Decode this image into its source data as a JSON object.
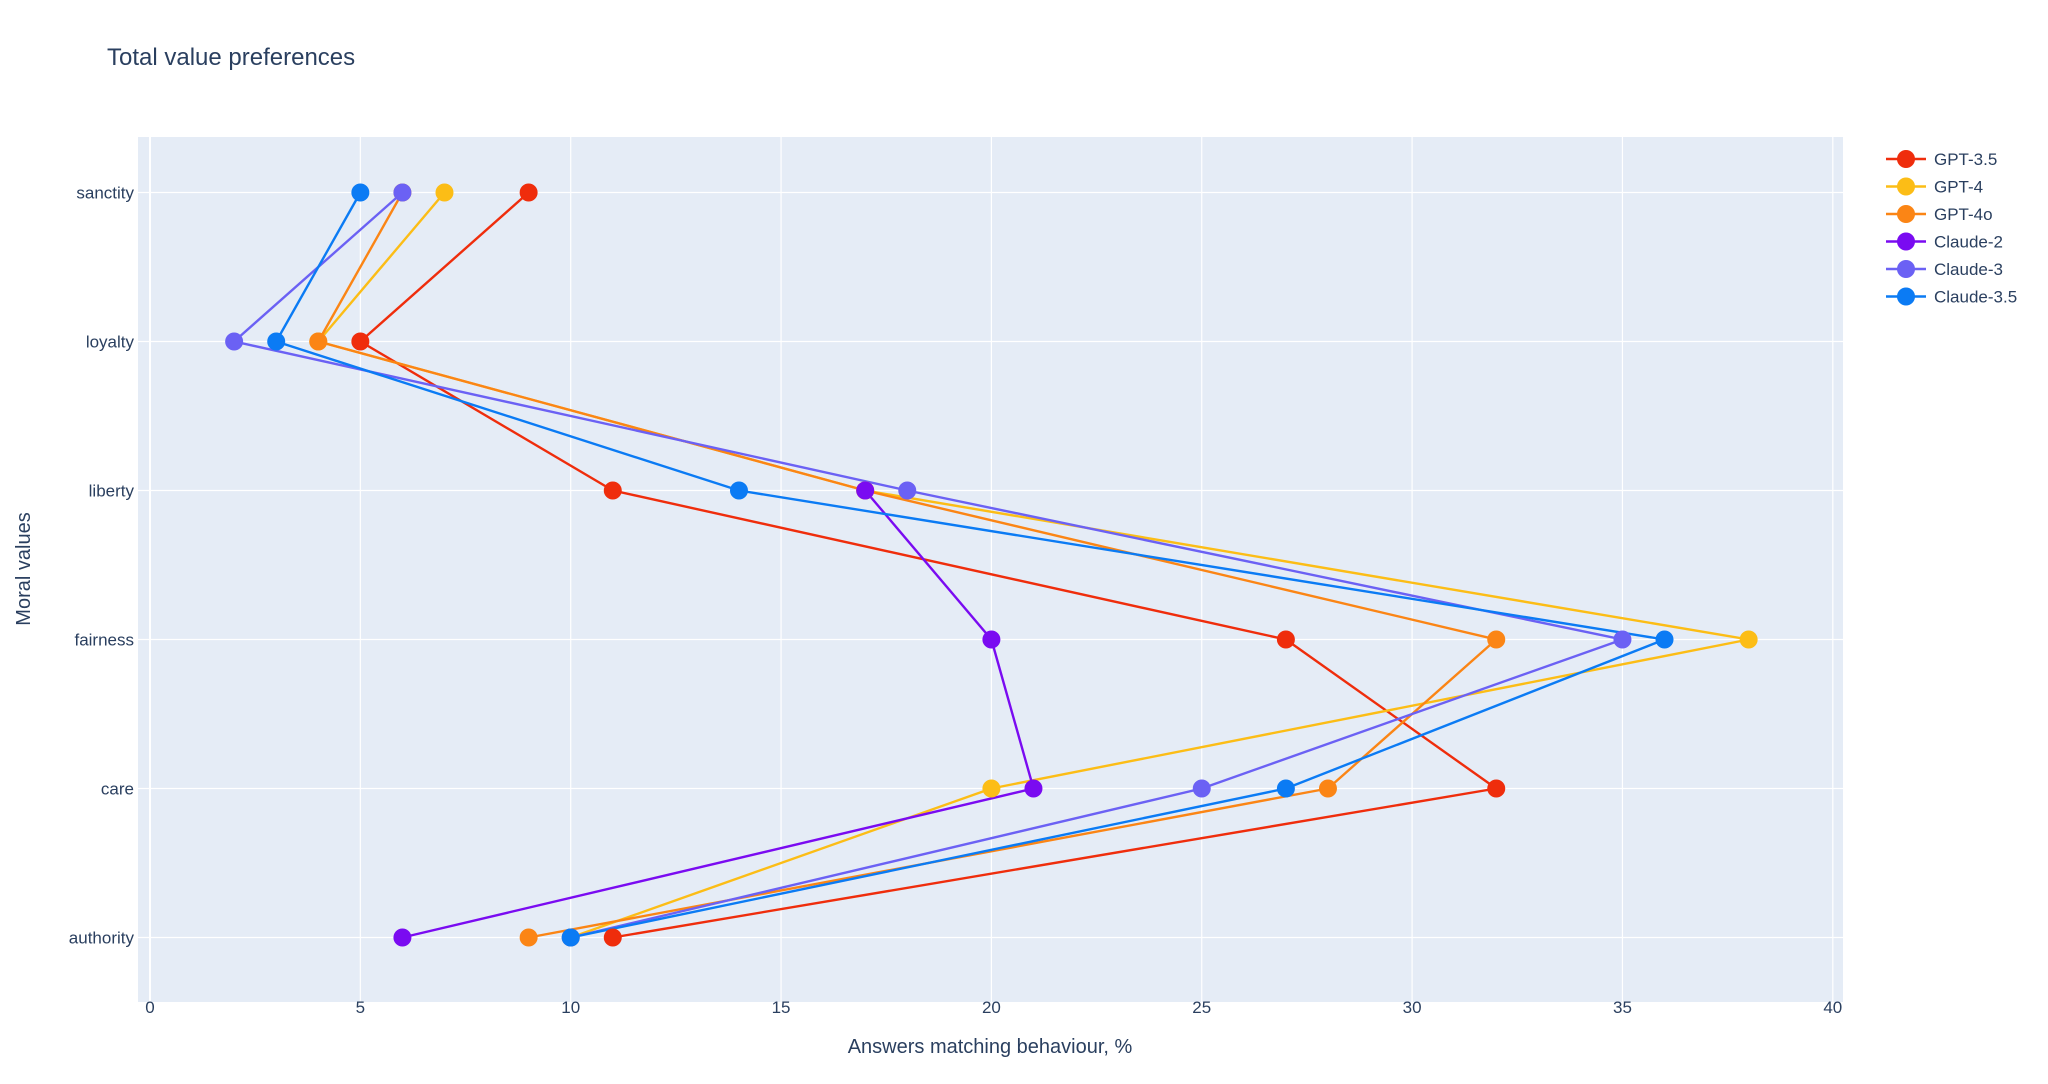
{
  "chart_data": {
    "type": "line",
    "title": "Total value preferences",
    "xlabel": "Answers matching behaviour, %",
    "ylabel": "Moral values",
    "xlim": [
      0,
      40
    ],
    "xticks": [
      0,
      5,
      10,
      15,
      20,
      25,
      30,
      35,
      40
    ],
    "categories": [
      "sanctity",
      "loyalty",
      "liberty",
      "fairness",
      "care",
      "authority"
    ],
    "grid": true,
    "legend_position": "top-right",
    "series": [
      {
        "name": "GPT-3.5",
        "color": "#EF2D0C",
        "values": [
          9,
          5,
          11,
          27,
          32,
          11
        ]
      },
      {
        "name": "GPT-4",
        "color": "#FCBD16",
        "values": [
          7,
          4,
          17,
          38,
          20,
          10
        ]
      },
      {
        "name": "GPT-4o",
        "color": "#FB8515",
        "values": [
          6,
          4,
          17,
          32,
          28,
          9
        ]
      },
      {
        "name": "Claude-2",
        "color": "#7A0BF1",
        "values": [
          null,
          null,
          17,
          20,
          21,
          6
        ]
      },
      {
        "name": "Claude-3",
        "color": "#6B61F4",
        "values": [
          6,
          2,
          18,
          35,
          25,
          10
        ]
      },
      {
        "name": "Claude-3.5",
        "color": "#0B7BF4",
        "values": [
          5,
          3,
          14,
          36,
          27,
          10
        ]
      }
    ]
  }
}
